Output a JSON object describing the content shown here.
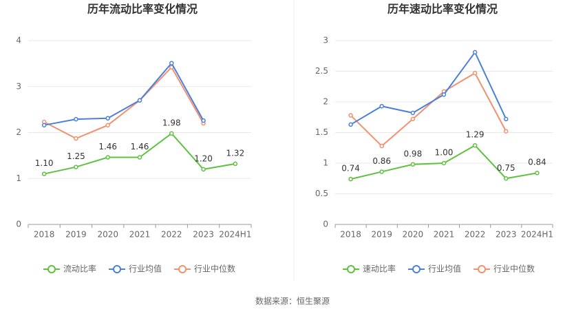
{
  "chart_data": [
    {
      "type": "line",
      "title": "历年流动比率变化情况",
      "categories": [
        "2018",
        "2019",
        "2020",
        "2021",
        "2022",
        "2023",
        "2024H1"
      ],
      "ylim": [
        0,
        4
      ],
      "yticks": [
        0,
        1,
        2,
        3,
        4
      ],
      "grid": true,
      "series": [
        {
          "name": "流动比率",
          "color": "#5ec13f",
          "values": [
            1.1,
            1.25,
            1.46,
            1.46,
            1.98,
            1.2,
            1.32
          ],
          "value_labels": [
            "1.10",
            "1.25",
            "1.46",
            "1.46",
            "1.98",
            "1.20",
            "1.32"
          ]
        },
        {
          "name": "行业均值",
          "color": "#4a7fdc",
          "values": [
            2.16,
            2.29,
            2.31,
            2.7,
            3.51,
            2.26,
            null
          ]
        },
        {
          "name": "行业中位数",
          "color": "#f3906f",
          "values": [
            2.23,
            1.87,
            2.16,
            2.7,
            3.42,
            2.2,
            null
          ]
        }
      ]
    },
    {
      "type": "line",
      "title": "历年速动比率变化情况",
      "categories": [
        "2018",
        "2019",
        "2020",
        "2021",
        "2022",
        "2023",
        "2024H1"
      ],
      "ylim": [
        0,
        3
      ],
      "yticks": [
        0,
        0.5,
        1,
        1.5,
        2,
        2.5,
        3
      ],
      "grid": true,
      "series": [
        {
          "name": "速动比率",
          "color": "#5ec13f",
          "values": [
            0.74,
            0.86,
            0.98,
            1.0,
            1.29,
            0.75,
            0.84
          ],
          "value_labels": [
            "0.74",
            "0.86",
            "0.98",
            "1.00",
            "1.29",
            "0.75",
            "0.84"
          ]
        },
        {
          "name": "行业均值",
          "color": "#4a7fdc",
          "values": [
            1.63,
            1.93,
            1.82,
            2.12,
            2.81,
            1.72,
            null
          ]
        },
        {
          "name": "行业中位数",
          "color": "#f3906f",
          "values": [
            1.78,
            1.28,
            1.72,
            2.17,
            2.47,
            1.52,
            null
          ]
        }
      ]
    }
  ],
  "source": "数据来源：恒生聚源"
}
